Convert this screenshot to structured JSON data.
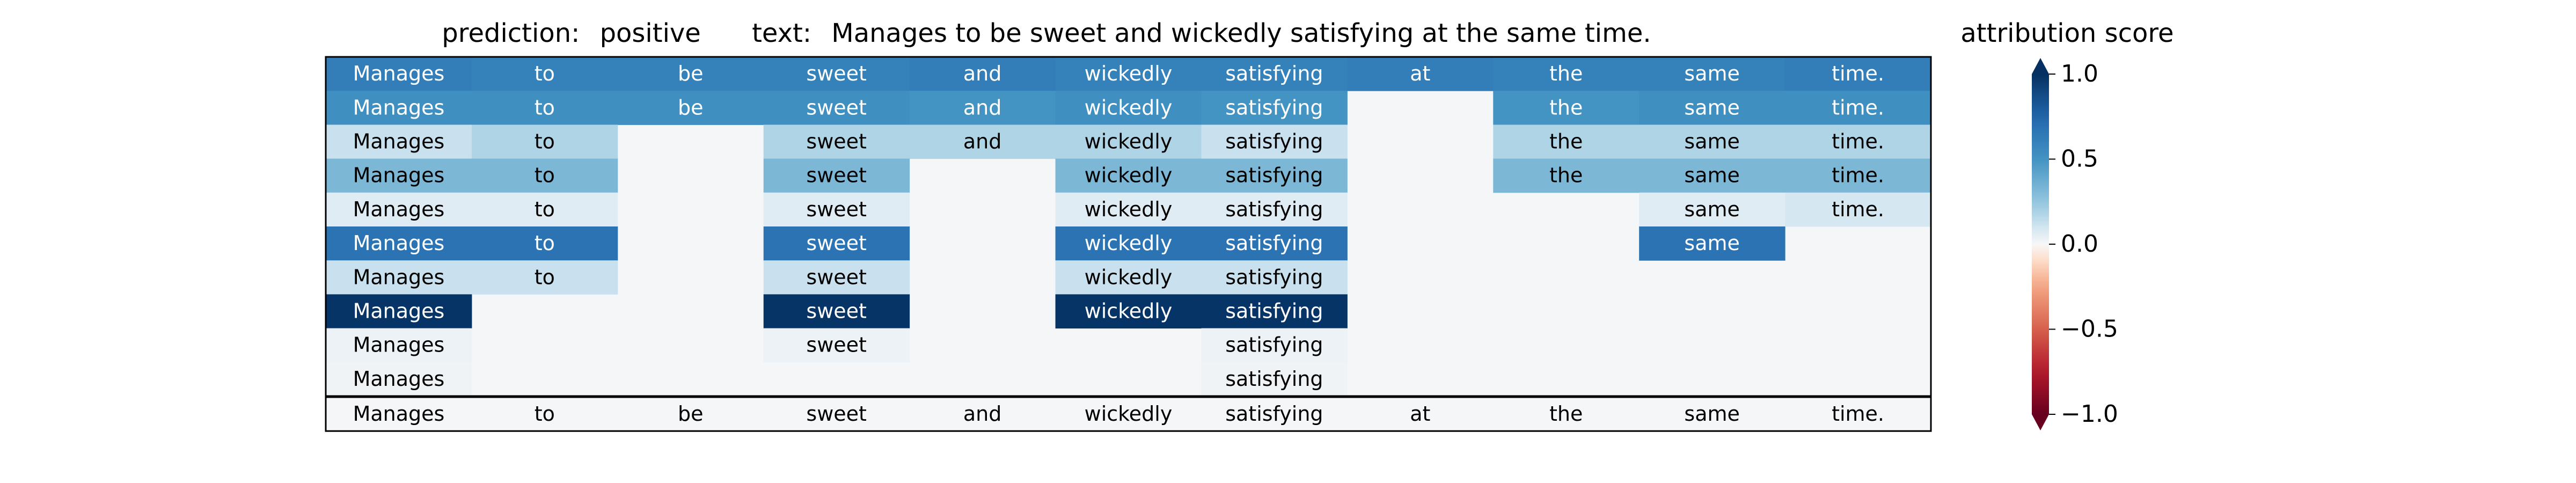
{
  "chart_data": {
    "type": "heatmap",
    "title_prediction_label": "prediction:",
    "title_prediction_value": "positive",
    "title_text_label": "text:",
    "title_text_value": "Manages to be sweet and wickedly satisfying at the same time.",
    "colorbar_title": "attribution score",
    "colorbar_ticks": [
      "1.0",
      "0.5",
      "0.0",
      "−0.5",
      "−1.0"
    ],
    "colorbar_tick_values": [
      1.0,
      0.5,
      0.0,
      -0.5,
      -1.0
    ],
    "vmin": -1.0,
    "vmax": 1.0,
    "colormap": "RdBu",
    "tokens": [
      "Manages",
      "to",
      "be",
      "sweet",
      "and",
      "wickedly",
      "satisfying",
      "at",
      "the",
      "same",
      "time."
    ],
    "rows": [
      [
        0.62,
        0.6,
        0.6,
        0.6,
        0.62,
        0.6,
        0.6,
        0.62,
        0.6,
        0.6,
        0.62
      ],
      [
        0.52,
        0.52,
        0.52,
        0.52,
        0.5,
        0.52,
        0.5,
        null,
        0.5,
        0.52,
        0.52
      ],
      [
        0.12,
        0.18,
        null,
        0.18,
        0.18,
        0.18,
        0.12,
        null,
        0.18,
        0.18,
        0.18
      ],
      [
        0.32,
        0.32,
        null,
        0.32,
        null,
        0.32,
        0.32,
        null,
        0.32,
        0.32,
        0.32
      ],
      [
        0.06,
        0.06,
        null,
        0.06,
        null,
        0.06,
        0.06,
        null,
        null,
        0.06,
        0.09
      ],
      [
        0.68,
        0.68,
        null,
        0.68,
        null,
        0.68,
        0.68,
        null,
        null,
        0.68,
        null
      ],
      [
        0.12,
        0.12,
        null,
        0.12,
        null,
        0.12,
        0.12,
        null,
        null,
        null,
        null
      ],
      [
        0.98,
        null,
        null,
        0.98,
        null,
        0.98,
        0.98,
        null,
        null,
        null,
        null
      ],
      [
        0.03,
        null,
        null,
        0.03,
        null,
        null,
        0.03,
        null,
        null,
        null,
        null
      ],
      [
        0.02,
        null,
        null,
        null,
        null,
        null,
        0.02,
        null,
        null,
        null,
        null
      ]
    ],
    "baseline_row": [
      "Manages",
      "to",
      "be",
      "sweet",
      "and",
      "wickedly",
      "satisfying",
      "at",
      "the",
      "same",
      "time."
    ]
  }
}
